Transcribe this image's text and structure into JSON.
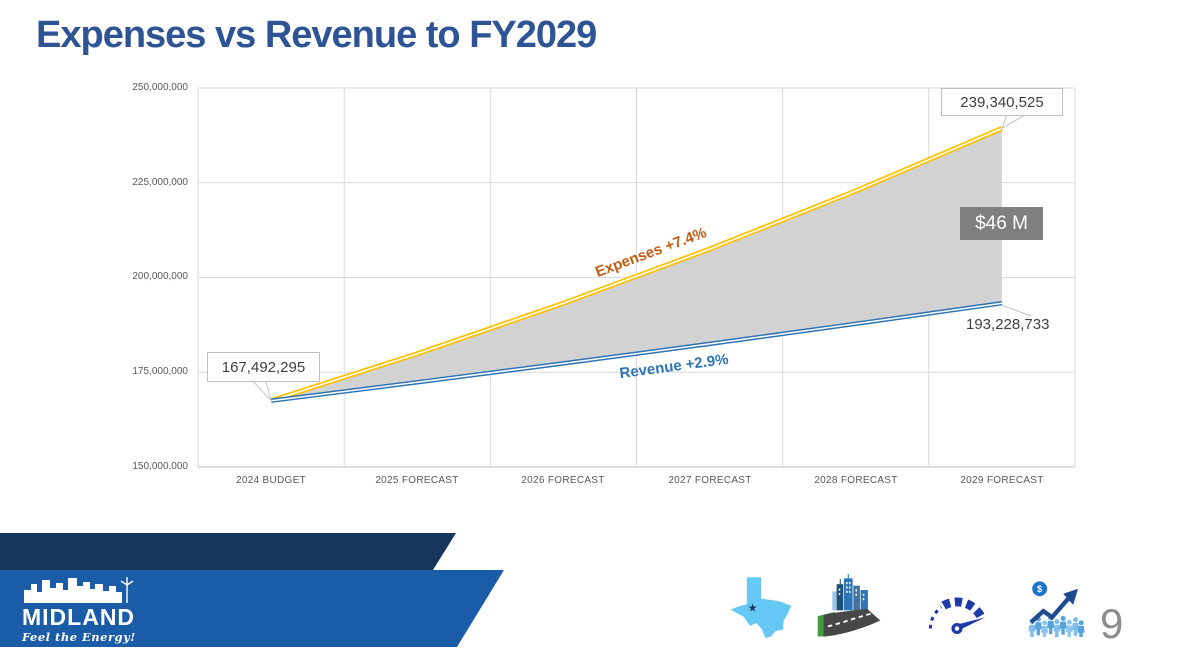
{
  "slide": {
    "title": "Expenses vs Revenue to FY2029",
    "page_number": "9"
  },
  "chart_data": {
    "type": "line",
    "title": "Expenses vs Revenue to FY2029",
    "categories": [
      "2024 BUDGET",
      "2025 FORECAST",
      "2026 FORECAST",
      "2027 FORECAST",
      "2028 FORECAST",
      "2029 FORECAST"
    ],
    "series": [
      {
        "name": "Expenses",
        "label": "Expenses +7.4%",
        "growth_rate": "+7.4%",
        "color": "#FFC000",
        "label_color": "#C55A11",
        "values": [
          167492295,
          179886725,
          193198343,
          207495020,
          222849652,
          239340525
        ]
      },
      {
        "name": "Revenue",
        "label": "Revenue +2.9%",
        "growth_rate": "+2.9%",
        "color": "#2E75B6",
        "label_color": "#2E75B6",
        "values": [
          167492295,
          172349572,
          177347710,
          182490793,
          187783026,
          193228733
        ]
      }
    ],
    "ylim": [
      150000000,
      250000000
    ],
    "ytick_step": 25000000,
    "yticks": [
      "250,000,000",
      "225,000,000",
      "200,000,000",
      "175,000,000",
      "150,000,000"
    ],
    "xlabel": "",
    "ylabel": "",
    "grid": true,
    "legend_position": "none",
    "gap_fill_color": "#D2D2D2",
    "annotations": {
      "start_value": "167,492,295",
      "expenses_end_value": "239,340,525",
      "revenue_end_value": "193,228,733",
      "gap_value": "$46 M"
    }
  },
  "footer": {
    "logo_name": "MIDLAND",
    "logo_tagline": "Feel the Energy!",
    "dark_band_color": "#17365D",
    "light_band_color": "#1B5CA8",
    "icons": [
      "texas-map",
      "city-road",
      "speedometer",
      "financial-growth"
    ]
  }
}
